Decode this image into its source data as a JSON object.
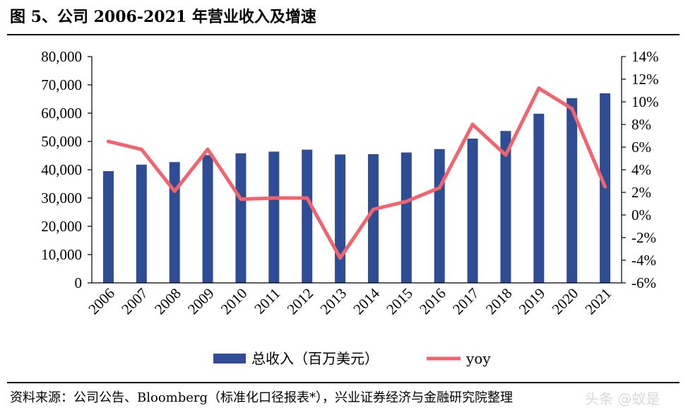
{
  "header": {
    "title": "图 5、公司 2006-2021 年营业收入及增速"
  },
  "footer": {
    "source": "资料来源：公司公告、Bloomberg（标准化口径报表*），兴业证券经济与金融研究院整理",
    "watermark": "头条 @蚁是"
  },
  "colors": {
    "bar": "#2E4D95",
    "line": "#F2636D",
    "axis": "#000000"
  },
  "chart_data": {
    "type": "bar",
    "title": "图 5、公司 2006-2021 年营业收入及增速",
    "categories": [
      "2006",
      "2007",
      "2008",
      "2009",
      "2010",
      "2011",
      "2012",
      "2013",
      "2014",
      "2015",
      "2016",
      "2017",
      "2018",
      "2019",
      "2020",
      "2021"
    ],
    "series": [
      {
        "name": "总收入（百万美元）",
        "type": "bar",
        "axis": "left",
        "values": [
          39500,
          41800,
          42700,
          45200,
          45800,
          46400,
          47100,
          45400,
          45500,
          46100,
          47300,
          51000,
          53700,
          59800,
          65300,
          67000
        ]
      },
      {
        "name": "yoy",
        "type": "line",
        "axis": "right",
        "values": [
          6.5,
          5.8,
          2.1,
          5.8,
          1.4,
          1.5,
          1.5,
          -3.8,
          0.5,
          1.2,
          2.4,
          8.0,
          5.3,
          11.2,
          9.4,
          2.5
        ]
      }
    ],
    "y_left": {
      "min": 0,
      "max": 80000,
      "step": 10000,
      "ticks": [
        "0",
        "10,000",
        "20,000",
        "30,000",
        "40,000",
        "50,000",
        "60,000",
        "70,000",
        "80,000"
      ]
    },
    "y_right": {
      "min": -6,
      "max": 14,
      "step": 2,
      "ticks": [
        "-6%",
        "-4%",
        "-2%",
        "0%",
        "2%",
        "4%",
        "6%",
        "8%",
        "10%",
        "12%",
        "14%"
      ]
    },
    "grid": false,
    "legend": "bottom-center"
  }
}
